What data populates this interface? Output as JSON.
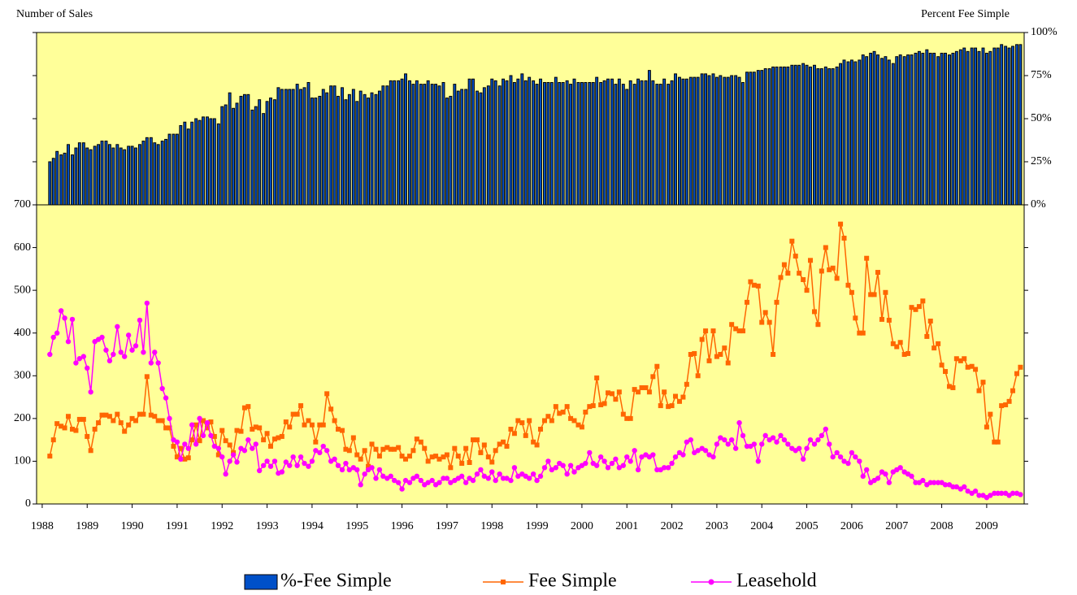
{
  "chart_data": {
    "type": "combo",
    "ylabel": "Number of Sales",
    "y2label": "Percent Fee Simple",
    "x": [
      1988.17,
      1988.25,
      1988.33,
      1988.42,
      1988.5,
      1988.58,
      1988.67,
      1988.75,
      1988.83,
      1988.92,
      1989,
      1989.08,
      1989.17,
      1989.25,
      1989.33,
      1989.42,
      1989.5,
      1989.58,
      1989.67,
      1989.75,
      1989.83,
      1989.92,
      1990,
      1990.08,
      1990.17,
      1990.25,
      1990.33,
      1990.42,
      1990.5,
      1990.58,
      1990.67,
      1990.75,
      1990.83,
      1990.92,
      1991,
      1991.08,
      1991.17,
      1991.25,
      1991.33,
      1991.42,
      1991.5,
      1991.58,
      1991.67,
      1991.75,
      1991.83,
      1991.92,
      1992,
      1992.08,
      1992.17,
      1992.25,
      1992.33,
      1992.42,
      1992.5,
      1992.58,
      1992.67,
      1992.75,
      1992.83,
      1992.92,
      1993,
      1993.08,
      1993.17,
      1993.25,
      1993.33,
      1993.42,
      1993.5,
      1993.58,
      1993.67,
      1993.75,
      1993.83,
      1993.92,
      1994,
      1994.08,
      1994.17,
      1994.25,
      1994.33,
      1994.42,
      1994.5,
      1994.58,
      1994.67,
      1994.75,
      1994.83,
      1994.92,
      1995,
      1995.08,
      1995.17,
      1995.25,
      1995.33,
      1995.42,
      1995.5,
      1995.58,
      1995.67,
      1995.75,
      1995.83,
      1995.92,
      1996,
      1996.08,
      1996.17,
      1996.25,
      1996.33,
      1996.42,
      1996.5,
      1996.58,
      1996.67,
      1996.75,
      1996.83,
      1996.92,
      1997,
      1997.08,
      1997.17,
      1997.25,
      1997.33,
      1997.42,
      1997.5,
      1997.58,
      1997.67,
      1997.75,
      1997.83,
      1997.92,
      1998,
      1998.08,
      1998.17,
      1998.25,
      1998.33,
      1998.42,
      1998.5,
      1998.58,
      1998.67,
      1998.75,
      1998.83,
      1998.92,
      1999,
      1999.08,
      1999.17,
      1999.25,
      1999.33,
      1999.42,
      1999.5,
      1999.58,
      1999.67,
      1999.75,
      1999.83,
      1999.92,
      2000,
      2000.08,
      2000.17,
      2000.25,
      2000.33,
      2000.42,
      2000.5,
      2000.58,
      2000.67,
      2000.75,
      2000.83,
      2000.92,
      2001,
      2001.08,
      2001.17,
      2001.25,
      2001.33,
      2001.42,
      2001.5,
      2001.58,
      2001.67,
      2001.75,
      2001.83,
      2001.92,
      2002,
      2002.08,
      2002.17,
      2002.25,
      2002.33,
      2002.42,
      2002.5,
      2002.58,
      2002.67,
      2002.75,
      2002.83,
      2002.92,
      2003,
      2003.08,
      2003.17,
      2003.25,
      2003.33,
      2003.42,
      2003.5,
      2003.58,
      2003.67,
      2003.75,
      2003.83,
      2003.92,
      2004,
      2004.08,
      2004.17,
      2004.25,
      2004.33,
      2004.42,
      2004.5,
      2004.58,
      2004.67,
      2004.75,
      2004.83,
      2004.92,
      2005,
      2005.08,
      2005.17,
      2005.25,
      2005.33,
      2005.42,
      2005.5,
      2005.58,
      2005.67,
      2005.75,
      2005.83,
      2005.92,
      2006,
      2006.08,
      2006.17,
      2006.25,
      2006.33,
      2006.42,
      2006.5,
      2006.58,
      2006.67,
      2006.75,
      2006.83,
      2006.92,
      2007,
      2007.08,
      2007.17,
      2007.25,
      2007.33,
      2007.42,
      2007.5,
      2007.58,
      2007.67,
      2007.75,
      2007.83,
      2007.92,
      2008,
      2008.08,
      2008.17,
      2008.25,
      2008.33,
      2008.42,
      2008.5,
      2008.58,
      2008.67,
      2008.75,
      2008.83,
      2008.92,
      2009,
      2009.08,
      2009.17,
      2009.25,
      2009.33,
      2009.42,
      2009.5,
      2009.58,
      2009.67,
      2009.75
    ],
    "xlim": [
      1987.875,
      2009.833
    ],
    "xticks": [
      1988,
      1989,
      1990,
      1991,
      1992,
      1993,
      1994,
      1995,
      1996,
      1997,
      1998,
      1999,
      2000,
      2001,
      2002,
      2003,
      2004,
      2005,
      2006,
      2007,
      2008,
      2009
    ],
    "ylim": [
      0,
      700
    ],
    "yticks": [
      0,
      100,
      200,
      300,
      400,
      500,
      600,
      700
    ],
    "y2lim": [
      0,
      100
    ],
    "y2ticks": [
      {
        "value": 0,
        "label": "0%"
      },
      {
        "value": 25,
        "label": "25%"
      },
      {
        "value": 50,
        "label": "50%"
      },
      {
        "value": 75,
        "label": "75%"
      },
      {
        "value": 100,
        "label": "100%"
      }
    ],
    "background": "#ffff99",
    "series": [
      {
        "name": "%-Fee Simple",
        "type": "bar",
        "axis": "y2",
        "color": "#0050c8",
        "values": [
          25,
          27,
          31,
          29,
          30,
          35,
          29,
          33,
          36,
          36,
          33,
          32,
          34,
          35,
          37,
          37,
          35,
          33,
          35,
          33,
          32,
          34,
          34,
          33,
          35,
          37,
          39,
          39,
          36,
          35,
          37,
          38,
          41,
          41,
          41,
          46,
          48,
          44,
          48,
          50,
          49,
          51,
          51,
          50,
          50,
          47,
          57,
          58,
          65,
          56,
          59,
          63,
          64,
          64,
          55,
          57,
          61,
          53,
          60,
          62,
          61,
          68,
          67,
          67,
          67,
          67,
          70,
          67,
          68,
          71,
          62,
          62,
          63,
          67,
          65,
          69,
          69,
          63,
          68,
          61,
          64,
          67,
          60,
          66,
          64,
          62,
          65,
          64,
          66,
          69,
          69,
          72,
          72,
          72,
          73,
          76,
          72,
          70,
          72,
          70,
          70,
          72,
          70,
          70,
          69,
          71,
          62,
          63,
          70,
          66,
          67,
          67,
          73,
          73,
          66,
          65,
          68,
          69,
          73,
          72,
          69,
          73,
          72,
          75,
          71,
          73,
          76,
          72,
          74,
          72,
          70,
          73,
          71,
          71,
          71,
          74,
          71,
          71,
          72,
          70,
          73,
          71,
          71,
          71,
          71,
          71,
          74,
          71,
          72,
          73,
          73,
          70,
          73,
          70,
          67,
          72,
          70,
          73,
          72,
          72,
          78,
          72,
          70,
          70,
          73,
          70,
          72,
          76,
          74,
          73,
          73,
          74,
          74,
          74,
          76,
          76,
          75,
          76,
          74,
          75,
          74,
          74,
          75,
          75,
          74,
          71,
          77,
          77,
          77,
          78,
          78,
          79,
          79,
          80,
          80,
          80,
          80,
          80,
          81,
          81,
          81,
          82,
          81,
          80,
          81,
          79,
          79,
          80,
          79,
          79,
          80,
          82,
          84,
          83,
          84,
          83,
          84,
          87,
          86,
          88,
          89,
          87,
          85,
          86,
          84,
          82,
          86,
          87,
          86,
          87,
          87,
          88,
          89,
          88,
          90,
          88,
          88,
          86,
          88,
          88,
          87,
          88,
          89,
          90,
          91,
          89,
          91,
          91,
          89,
          91,
          88,
          89,
          91,
          91,
          93,
          92,
          91,
          92,
          93,
          93
        ]
      },
      {
        "name": "Fee Simple",
        "type": "line",
        "marker": "square",
        "color": "#ff6600",
        "values": [
          112,
          150,
          188,
          182,
          178,
          205,
          175,
          172,
          198,
          198,
          158,
          125,
          175,
          190,
          208,
          208,
          205,
          195,
          210,
          190,
          170,
          185,
          200,
          195,
          210,
          210,
          298,
          208,
          205,
          195,
          195,
          178,
          178,
          135,
          110,
          130,
          105,
          108,
          150,
          185,
          148,
          195,
          178,
          192,
          158,
          115,
          172,
          148,
          138,
          120,
          172,
          170,
          225,
          228,
          175,
          180,
          178,
          150,
          165,
          135,
          152,
          155,
          158,
          192,
          180,
          210,
          210,
          230,
          185,
          195,
          185,
          145,
          185,
          185,
          258,
          222,
          195,
          175,
          172,
          128,
          125,
          155,
          115,
          105,
          125,
          88,
          140,
          128,
          112,
          128,
          132,
          128,
          128,
          132,
          112,
          105,
          112,
          125,
          152,
          145,
          130,
          100,
          110,
          112,
          105,
          110,
          115,
          85,
          130,
          112,
          95,
          130,
          97,
          150,
          150,
          120,
          138,
          110,
          98,
          125,
          140,
          145,
          135,
          175,
          165,
          195,
          190,
          160,
          195,
          145,
          138,
          175,
          195,
          205,
          195,
          228,
          212,
          215,
          228,
          200,
          195,
          185,
          180,
          215,
          228,
          230,
          295,
          232,
          235,
          260,
          258,
          245,
          262,
          210,
          200,
          200,
          268,
          262,
          272,
          272,
          262,
          298,
          322,
          230,
          262,
          228,
          230,
          252,
          240,
          250,
          280,
          350,
          352,
          300,
          385,
          405,
          335,
          405,
          345,
          350,
          365,
          330,
          420,
          410,
          405,
          405,
          472,
          520,
          512,
          510,
          425,
          448,
          425,
          350,
          472,
          530,
          560,
          540,
          615,
          580,
          540,
          525,
          500,
          570,
          450,
          420,
          545,
          600,
          548,
          552,
          528,
          655,
          622,
          512,
          495,
          435,
          400,
          400,
          575,
          490,
          490,
          542,
          432,
          495,
          430,
          375,
          368,
          378,
          350,
          352,
          460,
          455,
          462,
          475,
          392,
          428,
          365,
          375,
          325,
          310,
          275,
          272,
          340,
          335,
          340,
          320,
          322,
          315,
          265,
          285,
          180,
          210,
          145,
          145,
          230,
          232,
          240,
          265,
          305,
          320
        ]
      },
      {
        "name": "Leasehold",
        "type": "line",
        "marker": "circle",
        "color": "#ff00ff",
        "values": [
          350,
          390,
          400,
          452,
          435,
          380,
          432,
          330,
          340,
          345,
          318,
          262,
          380,
          385,
          390,
          360,
          335,
          350,
          415,
          355,
          345,
          395,
          360,
          370,
          430,
          355,
          470,
          330,
          355,
          330,
          270,
          248,
          200,
          150,
          145,
          105,
          140,
          130,
          185,
          140,
          200,
          160,
          190,
          160,
          135,
          130,
          110,
          70,
          100,
          115,
          98,
          130,
          125,
          150,
          130,
          140,
          78,
          90,
          100,
          88,
          100,
          72,
          75,
          98,
          90,
          110,
          90,
          110,
          95,
          88,
          100,
          125,
          120,
          135,
          125,
          100,
          105,
          90,
          80,
          95,
          80,
          85,
          80,
          45,
          70,
          80,
          85,
          60,
          80,
          65,
          60,
          65,
          55,
          50,
          35,
          55,
          50,
          60,
          65,
          55,
          45,
          50,
          55,
          45,
          50,
          60,
          60,
          50,
          55,
          60,
          65,
          50,
          60,
          55,
          70,
          80,
          65,
          60,
          75,
          55,
          70,
          60,
          60,
          55,
          85,
          65,
          70,
          65,
          60,
          70,
          55,
          65,
          85,
          100,
          80,
          85,
          95,
          90,
          70,
          90,
          75,
          85,
          90,
          95,
          120,
          95,
          90,
          110,
          100,
          85,
          95,
          105,
          85,
          90,
          110,
          100,
          125,
          80,
          110,
          115,
          110,
          115,
          80,
          80,
          85,
          85,
          95,
          110,
          120,
          115,
          145,
          150,
          120,
          125,
          130,
          125,
          115,
          110,
          140,
          155,
          150,
          140,
          150,
          130,
          190,
          160,
          135,
          135,
          140,
          100,
          140,
          160,
          150,
          155,
          145,
          160,
          150,
          140,
          130,
          125,
          130,
          105,
          130,
          150,
          140,
          150,
          160,
          175,
          140,
          110,
          120,
          110,
          100,
          95,
          120,
          110,
          100,
          65,
          80,
          50,
          55,
          60,
          75,
          70,
          50,
          75,
          80,
          85,
          75,
          70,
          65,
          50,
          50,
          55,
          45,
          50,
          50,
          50,
          50,
          45,
          45,
          40,
          40,
          35,
          40,
          30,
          25,
          30,
          20,
          20,
          15,
          20,
          25,
          25,
          25,
          25,
          20,
          25,
          25,
          22
        ]
      }
    ]
  }
}
